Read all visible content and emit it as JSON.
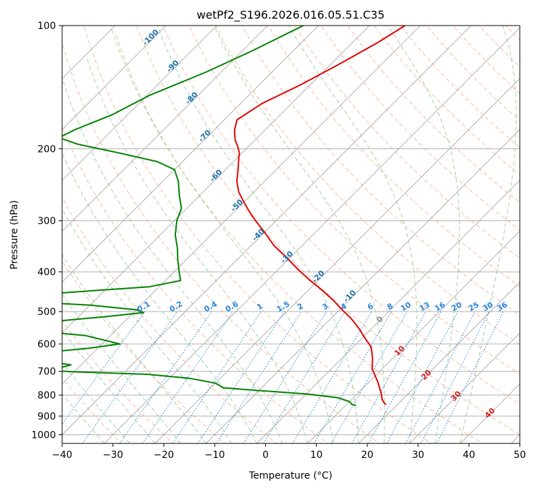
{
  "chart_data": {
    "type": "line",
    "title": "wetPf2_S196.2026.016.05.51.C35",
    "xlabel": "Temperature (°C)",
    "ylabel": "Pressure (hPa)",
    "xlim": [
      -40,
      50
    ],
    "ylim": [
      1050,
      100
    ],
    "x_ticks": [
      -40,
      -30,
      -20,
      -10,
      0,
      10,
      20,
      30,
      40,
      50
    ],
    "y_ticks": [
      100,
      200,
      300,
      400,
      500,
      600,
      700,
      800,
      900,
      1000
    ],
    "skew": 1.0,
    "colors": {
      "temperature": "#e00000",
      "dewpoint": "#008000",
      "isotherm_label": "#1f6fa8",
      "mixing_ratio": "#2b84e0",
      "dry_adiabat": "#f5a080",
      "moist_adiabat": "#90c890",
      "warm_label": "#d02020",
      "zero_label": "#888888"
    },
    "series": [
      {
        "name": "Temperature",
        "color": "#e00000",
        "points": [
          [
            -53.0,
            100
          ],
          [
            -55.0,
            110
          ],
          [
            -58.5,
            125
          ],
          [
            -62.0,
            140
          ],
          [
            -65.8,
            155
          ],
          [
            -67.5,
            170
          ],
          [
            -66.0,
            180
          ],
          [
            -64.0,
            190
          ],
          [
            -62.0,
            198
          ],
          [
            -60.5,
            205
          ],
          [
            -59.0,
            215
          ],
          [
            -57.5,
            225
          ],
          [
            -55.5,
            240
          ],
          [
            -53.0,
            255
          ],
          [
            -50.0,
            270
          ],
          [
            -47.0,
            285
          ],
          [
            -44.0,
            300
          ],
          [
            -40.0,
            320
          ],
          [
            -35.5,
            345
          ],
          [
            -30.5,
            370
          ],
          [
            -26.0,
            395
          ],
          [
            -21.5,
            420
          ],
          [
            -17.0,
            445
          ],
          [
            -13.0,
            470
          ],
          [
            -9.5,
            495
          ],
          [
            -6.0,
            520
          ],
          [
            -2.5,
            550
          ],
          [
            0.5,
            580
          ],
          [
            3.5,
            610
          ],
          [
            6.0,
            650
          ],
          [
            8.0,
            690
          ],
          [
            11.5,
            740
          ],
          [
            14.5,
            790
          ],
          [
            16.0,
            820
          ],
          [
            17.0,
            835
          ],
          [
            17.8,
            845
          ]
        ]
      },
      {
        "name": "Dewpoint",
        "color": "#008000",
        "points": [
          [
            -73.0,
            100
          ],
          [
            -78.0,
            115
          ],
          [
            -83.0,
            130
          ],
          [
            -89.5,
            148
          ],
          [
            -93.0,
            165
          ],
          [
            -97.5,
            180
          ],
          [
            -99.0,
            188
          ],
          [
            -94.0,
            195
          ],
          [
            -84.0,
            205
          ],
          [
            -75.0,
            215
          ],
          [
            -70.0,
            225
          ],
          [
            -67.0,
            240
          ],
          [
            -64.0,
            260
          ],
          [
            -61.0,
            280
          ],
          [
            -59.5,
            300
          ],
          [
            -57.0,
            325
          ],
          [
            -54.0,
            350
          ],
          [
            -51.5,
            375
          ],
          [
            -49.0,
            400
          ],
          [
            -47.0,
            420
          ],
          [
            -52.0,
            435
          ],
          [
            -68.0,
            450
          ],
          [
            -78.0,
            462
          ],
          [
            -75.0,
            472
          ],
          [
            -60.0,
            482
          ],
          [
            -50.0,
            495
          ],
          [
            -48.0,
            503
          ],
          [
            -55.0,
            515
          ],
          [
            -68.0,
            535
          ],
          [
            -75.0,
            545
          ],
          [
            -68.0,
            555
          ],
          [
            -55.0,
            572
          ],
          [
            -46.5,
            600
          ],
          [
            -52.0,
            615
          ],
          [
            -60.0,
            630
          ],
          [
            -66.0,
            643
          ],
          [
            -62.0,
            652
          ],
          [
            -56.0,
            665
          ],
          [
            -52.0,
            675
          ],
          [
            -53.5,
            685
          ],
          [
            -56.0,
            695
          ],
          [
            -50.0,
            702
          ],
          [
            -35.0,
            712
          ],
          [
            -26.0,
            728
          ],
          [
            -20.0,
            748
          ],
          [
            -17.5,
            768
          ],
          [
            -10.0,
            780
          ],
          [
            0.0,
            795
          ],
          [
            7.0,
            812
          ],
          [
            10.0,
            830
          ],
          [
            11.0,
            843
          ],
          [
            12.0,
            848
          ]
        ]
      }
    ],
    "isotherm_labels": [
      "-100",
      "-90",
      "-80",
      "-70",
      "-60",
      "-50",
      "-40",
      "-30",
      "-20",
      "-10"
    ],
    "mixing_ratio_values": [
      "0.1",
      "0.2",
      "0.4",
      "0.6",
      "1",
      "1.5",
      "2",
      "3",
      "4",
      "6",
      "8",
      "10",
      "13",
      "16",
      "20",
      "25",
      "30",
      "36"
    ],
    "mixing_ratio_label_pressure": 500,
    "warm_isotherm_labels": [
      "10",
      "20",
      "30",
      "40"
    ],
    "zero_label": "0"
  }
}
